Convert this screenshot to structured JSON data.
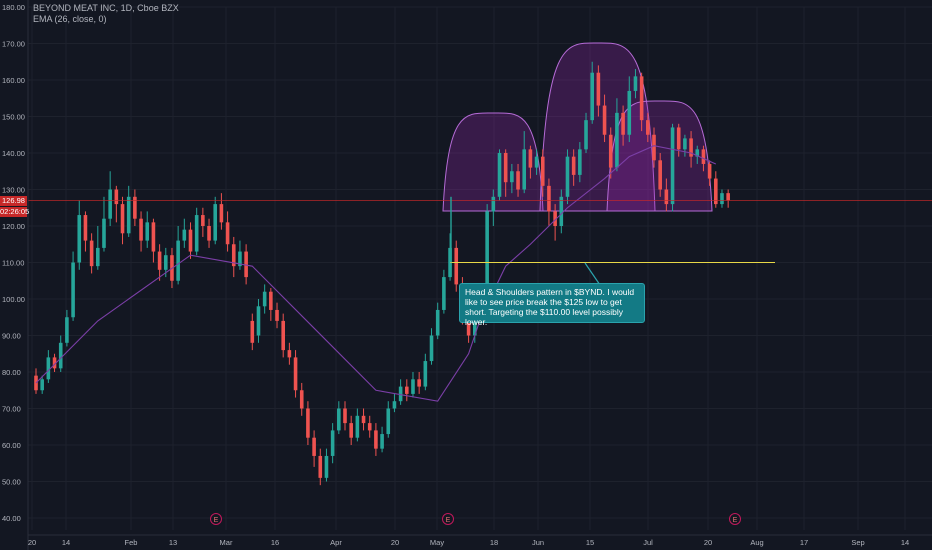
{
  "legend": {
    "symbol_line": "BEYOND MEAT INC, 1D, Cboe BZX",
    "indicator_line": "EMA (26, close, 0)"
  },
  "price_tags": {
    "last_price": "126.98",
    "countdown": "02:26:05"
  },
  "annotation": {
    "text": "Head & Shoulders pattern in $BYND.  I would like to see price break the $125 low to get short.  Targeting the $110.00 level possibly lower."
  },
  "colors": {
    "background": "#131722",
    "up_candle": "#26a69a",
    "down_candle": "#ef5350",
    "ema_line": "#7b3fa7",
    "pattern_fill": "#9c27b0",
    "support_line": "#e8d847",
    "price_line": "#c62828",
    "callout": "#137a85"
  },
  "earnings_marker": "E",
  "chart_data": {
    "type": "candlestick",
    "ylim": [
      38,
      180
    ],
    "yticks": [
      "40.00",
      "50.00",
      "60.00",
      "70.00",
      "80.00",
      "90.00",
      "100.00",
      "110.00",
      "120.00",
      "130.00",
      "140.00",
      "150.00",
      "160.00",
      "170.00",
      "180.00"
    ],
    "xticks": [
      "20",
      "14",
      "Feb",
      "13",
      "Mar",
      "16",
      "Apr",
      "20",
      "May",
      "18",
      "Jun",
      "15",
      "Jul",
      "20",
      "Aug",
      "17",
      "Sep",
      "14"
    ],
    "last_price": 126.98,
    "support_level": 110,
    "candles": [
      [
        79,
        75,
        81,
        74
      ],
      [
        75,
        78,
        79,
        74
      ],
      [
        78,
        84,
        86,
        77
      ],
      [
        84,
        81,
        85,
        80
      ],
      [
        81,
        88,
        90,
        80
      ],
      [
        88,
        95,
        97,
        87
      ],
      [
        95,
        110,
        113,
        94
      ],
      [
        110,
        123,
        127,
        108
      ],
      [
        123,
        116,
        124,
        113
      ],
      [
        116,
        109,
        118,
        107
      ],
      [
        109,
        114,
        120,
        108
      ],
      [
        114,
        122,
        128,
        113
      ],
      [
        122,
        130,
        135,
        120
      ],
      [
        130,
        126,
        131,
        121
      ],
      [
        126,
        118,
        128,
        115
      ],
      [
        118,
        128,
        131,
        117
      ],
      [
        128,
        122,
        130,
        120
      ],
      [
        122,
        116,
        124,
        113
      ],
      [
        116,
        121,
        124,
        114
      ],
      [
        121,
        113,
        122,
        110
      ],
      [
        113,
        108,
        115,
        105
      ],
      [
        108,
        112,
        114,
        106
      ],
      [
        112,
        105,
        114,
        103
      ],
      [
        105,
        116,
        120,
        104
      ],
      [
        116,
        119,
        122,
        114
      ],
      [
        119,
        113,
        121,
        111
      ],
      [
        113,
        123,
        125,
        112
      ],
      [
        123,
        120,
        125,
        117
      ],
      [
        120,
        116,
        122,
        114
      ],
      [
        116,
        126,
        128,
        115
      ],
      [
        126,
        121,
        129,
        119
      ],
      [
        121,
        115,
        124,
        113
      ],
      [
        115,
        109,
        117,
        106
      ],
      [
        109,
        113,
        116,
        108
      ],
      [
        113,
        106,
        115,
        104
      ],
      [
        94,
        88,
        96,
        86
      ],
      [
        90,
        98,
        100,
        88
      ],
      [
        98,
        102,
        104,
        96
      ],
      [
        102,
        97,
        103,
        94
      ],
      [
        97,
        94,
        99,
        92
      ],
      [
        94,
        86,
        96,
        84
      ],
      [
        86,
        84,
        88,
        82
      ],
      [
        84,
        75,
        86,
        73
      ],
      [
        75,
        70,
        77,
        68
      ],
      [
        70,
        62,
        72,
        60
      ],
      [
        62,
        57,
        64,
        54
      ],
      [
        57,
        51,
        59,
        49
      ],
      [
        51,
        57,
        59,
        50
      ],
      [
        57,
        64,
        66,
        55
      ],
      [
        64,
        70,
        72,
        63
      ],
      [
        70,
        66,
        72,
        64
      ],
      [
        66,
        62,
        68,
        60
      ],
      [
        62,
        68,
        70,
        61
      ],
      [
        68,
        66,
        70,
        64
      ],
      [
        66,
        64,
        68,
        62
      ],
      [
        64,
        59,
        66,
        57
      ],
      [
        59,
        63,
        65,
        58
      ],
      [
        63,
        70,
        72,
        62
      ],
      [
        70,
        72,
        74,
        69
      ],
      [
        72,
        76,
        78,
        71
      ],
      [
        76,
        74,
        78,
        72
      ],
      [
        74,
        78,
        80,
        73
      ],
      [
        78,
        76,
        80,
        74
      ],
      [
        76,
        83,
        85,
        75
      ],
      [
        83,
        90,
        92,
        82
      ],
      [
        90,
        97,
        99,
        89
      ],
      [
        97,
        106,
        108,
        96
      ],
      [
        106,
        114,
        118,
        105
      ],
      [
        114,
        104,
        116,
        102
      ],
      [
        104,
        95,
        106,
        93
      ],
      [
        95,
        90,
        97,
        88
      ],
      [
        90,
        95,
        97,
        88
      ],
      [
        95,
        99,
        101,
        93
      ],
      [
        99,
        124,
        126,
        98
      ],
      [
        124,
        128,
        130,
        120
      ],
      [
        128,
        140,
        141,
        127
      ],
      [
        140,
        132,
        141,
        128
      ],
      [
        132,
        135,
        137,
        129
      ],
      [
        135,
        130,
        137,
        128
      ],
      [
        130,
        141,
        146,
        129
      ],
      [
        141,
        136,
        142,
        133
      ],
      [
        136,
        139,
        141,
        134
      ],
      [
        139,
        131,
        141,
        128
      ],
      [
        131,
        124,
        133,
        120
      ],
      [
        124,
        120,
        126,
        116
      ],
      [
        120,
        128,
        130,
        118
      ],
      [
        128,
        139,
        141,
        126
      ],
      [
        139,
        134,
        141,
        131
      ],
      [
        134,
        141,
        143,
        132
      ],
      [
        141,
        149,
        151,
        140
      ],
      [
        149,
        162,
        165,
        148
      ],
      [
        162,
        153,
        164,
        150
      ],
      [
        153,
        145,
        156,
        143
      ],
      [
        145,
        136,
        147,
        133
      ],
      [
        136,
        151,
        155,
        135
      ],
      [
        151,
        145,
        153,
        142
      ],
      [
        145,
        157,
        161,
        143
      ],
      [
        157,
        161,
        163,
        155
      ],
      [
        161,
        149,
        162,
        146
      ],
      [
        149,
        145,
        151,
        143
      ],
      [
        145,
        138,
        147,
        136
      ],
      [
        138,
        130,
        140,
        128
      ],
      [
        130,
        126,
        133,
        124
      ],
      [
        126,
        147,
        148,
        124
      ],
      [
        147,
        141,
        148,
        139
      ],
      [
        141,
        144,
        145,
        139
      ],
      [
        144,
        139,
        146,
        136
      ],
      [
        139,
        141,
        142,
        137
      ],
      [
        141,
        137,
        142,
        135
      ],
      [
        137,
        133,
        138,
        131
      ],
      [
        133,
        126,
        135,
        125
      ],
      [
        126,
        129,
        130,
        125
      ],
      [
        129,
        127,
        130,
        125
      ]
    ],
    "ema_26": [
      [
        0,
        77
      ],
      [
        10,
        94
      ],
      [
        25,
        112
      ],
      [
        35,
        109
      ],
      [
        45,
        92
      ],
      [
        55,
        75
      ],
      [
        65,
        72
      ],
      [
        70,
        85
      ],
      [
        72,
        95
      ],
      [
        74,
        102
      ],
      [
        76,
        109
      ],
      [
        80,
        115
      ],
      [
        86,
        125
      ],
      [
        92,
        133
      ],
      [
        96,
        139
      ],
      [
        100,
        142
      ],
      [
        106,
        140
      ],
      [
        110,
        137
      ]
    ],
    "annotations": [
      "head-and-shoulders outline (left shoulder, head, right shoulder)",
      "support line at 110.00",
      "earnings markers"
    ]
  }
}
